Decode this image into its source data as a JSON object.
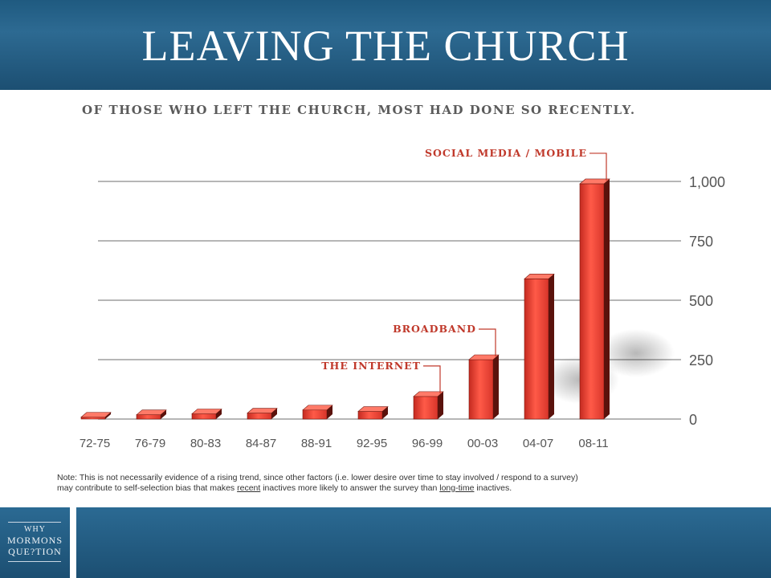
{
  "header": {
    "title": "LEAVING THE CHURCH"
  },
  "subtitle": "OF THOSE WHO LEFT THE CHURCH, MOST HAD DONE SO RECENTLY.",
  "chart_data": {
    "type": "bar",
    "categories": [
      "72-75",
      "76-79",
      "80-83",
      "84-87",
      "88-91",
      "92-95",
      "96-99",
      "00-03",
      "04-07",
      "08-11"
    ],
    "values": [
      8,
      18,
      22,
      25,
      38,
      32,
      95,
      250,
      590,
      990
    ],
    "ylim": [
      0,
      1000
    ],
    "yticks": [
      0,
      250,
      500,
      750,
      1000
    ],
    "ytick_labels": [
      "0",
      "250",
      "500",
      "750",
      "1,000"
    ],
    "grid": true,
    "bar_color": "#e0392b",
    "annotations": [
      {
        "label": "THE INTERNET",
        "category": "96-99"
      },
      {
        "label": "BROADBAND",
        "category": "00-03"
      },
      {
        "label": "SOCIAL MEDIA / MOBILE",
        "category": "08-11"
      }
    ],
    "annotation_color": "#c0392b"
  },
  "note": {
    "line1": "Note: This is not necessarily evidence of a rising trend, since other factors (i.e. lower desire over time to stay involved / respond to a survey)",
    "line2_a": "may contribute to self-selection bias that makes ",
    "line2_recent": "recent",
    "line2_b": " inactives more likely to answer the survey than ",
    "line2_long": "long-time",
    "line2_c": " inactives."
  },
  "logo": {
    "line1": "WHY",
    "line2": "MORMONS",
    "line3": "QUE?TION"
  }
}
